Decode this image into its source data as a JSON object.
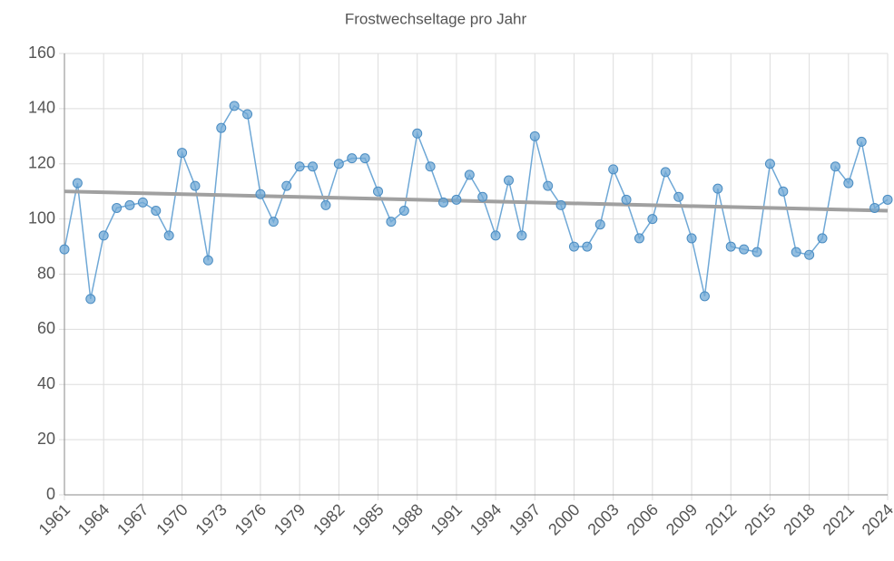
{
  "chart_data": {
    "type": "line",
    "title": "Frostwechseltage pro Jahr",
    "x": [
      1961,
      1962,
      1963,
      1964,
      1965,
      1966,
      1967,
      1968,
      1969,
      1970,
      1971,
      1972,
      1973,
      1974,
      1975,
      1976,
      1977,
      1978,
      1979,
      1980,
      1981,
      1982,
      1983,
      1984,
      1985,
      1986,
      1987,
      1988,
      1989,
      1990,
      1991,
      1992,
      1993,
      1994,
      1995,
      1996,
      1997,
      1998,
      1999,
      2000,
      2001,
      2002,
      2003,
      2004,
      2005,
      2006,
      2007,
      2008,
      2009,
      2010,
      2011,
      2012,
      2013,
      2014,
      2015,
      2016,
      2017,
      2018,
      2019,
      2020,
      2021,
      2022,
      2023,
      2024
    ],
    "series": [
      {
        "color": "#6fa8d6",
        "values": [
          89,
          113,
          71,
          94,
          104,
          105,
          106,
          103,
          94,
          124,
          112,
          85,
          133,
          141,
          138,
          109,
          99,
          112,
          119,
          119,
          105,
          120,
          122,
          122,
          110,
          99,
          103,
          131,
          119,
          106,
          107,
          116,
          108,
          94,
          114,
          94,
          130,
          112,
          105,
          90,
          90,
          98,
          118,
          107,
          93,
          100,
          117,
          108,
          93,
          72,
          111,
          90,
          89,
          88,
          120,
          110,
          88,
          87,
          93,
          119,
          113,
          128,
          104,
          107
        ]
      }
    ],
    "trend": {
      "x": [
        1961,
        2024
      ],
      "values": [
        110,
        103
      ],
      "color": "#a0a0a0"
    },
    "xlim": [
      1961,
      2024
    ],
    "ylim": [
      0,
      160
    ],
    "xticks": [
      1961,
      1964,
      1967,
      1970,
      1973,
      1976,
      1979,
      1982,
      1985,
      1988,
      1991,
      1994,
      1997,
      2000,
      2003,
      2006,
      2009,
      2012,
      2015,
      2018,
      2021,
      2024
    ],
    "yticks": [
      0,
      20,
      40,
      60,
      80,
      100,
      120,
      140,
      160
    ],
    "grid": true
  }
}
